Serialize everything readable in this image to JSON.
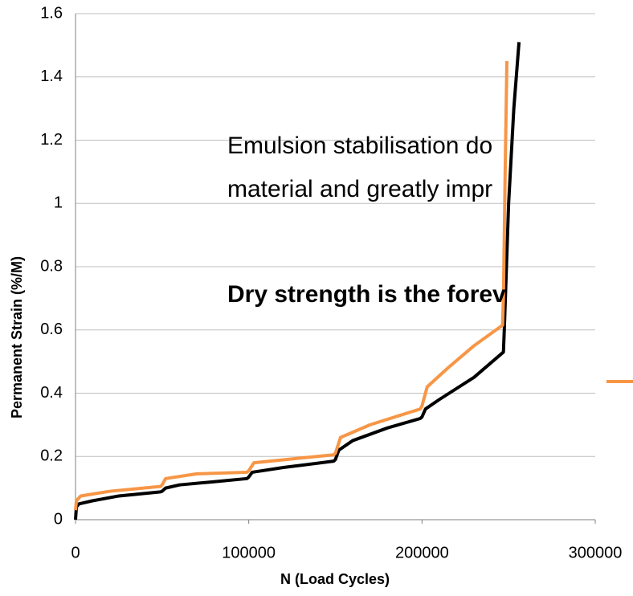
{
  "chart_data": {
    "type": "line",
    "xlabel": "N (Load Cycles)",
    "ylabel": "Permanent Strain (%/M)",
    "annotations": [
      "Emulsion stabilisation do",
      "material and greatly impr",
      "Dry strength is the forev"
    ],
    "xlim": [
      0,
      300000
    ],
    "xticks": [
      0,
      100000,
      200000,
      300000
    ],
    "ylim": [
      0,
      1.6
    ],
    "yticks": [
      0,
      0.2,
      0.4,
      0.6,
      0.8,
      1,
      1.2,
      1.4,
      1.6
    ],
    "grid": true,
    "series": [
      {
        "color": "#000000",
        "x": [
          0,
          500,
          2000,
          10000,
          25000,
          49000,
          50000,
          52000,
          60000,
          80000,
          99000,
          100000,
          102000,
          120000,
          149000,
          150000,
          152000,
          160000,
          180000,
          199000,
          200000,
          202000,
          210000,
          230000,
          247000,
          247500,
          250000,
          253000,
          256000
        ],
        "values": [
          0,
          0.04,
          0.05,
          0.06,
          0.075,
          0.088,
          0.09,
          0.1,
          0.11,
          0.12,
          0.13,
          0.135,
          0.15,
          0.165,
          0.185,
          0.19,
          0.22,
          0.25,
          0.29,
          0.32,
          0.325,
          0.35,
          0.38,
          0.45,
          0.53,
          0.6,
          1.0,
          1.3,
          1.51
        ]
      },
      {
        "color": "#f79646",
        "x": [
          0,
          500,
          3000,
          20000,
          49000,
          50000,
          52000,
          70000,
          99000,
          100000,
          103000,
          130000,
          149000,
          150000,
          153000,
          170000,
          199000,
          200000,
          203000,
          215000,
          230000,
          246500,
          247000,
          248000,
          249000
        ],
        "values": [
          0.03,
          0.06,
          0.075,
          0.09,
          0.105,
          0.11,
          0.13,
          0.145,
          0.15,
          0.155,
          0.18,
          0.195,
          0.205,
          0.21,
          0.26,
          0.3,
          0.35,
          0.36,
          0.42,
          0.48,
          0.55,
          0.615,
          0.7,
          1.1,
          1.45
        ]
      }
    ]
  }
}
